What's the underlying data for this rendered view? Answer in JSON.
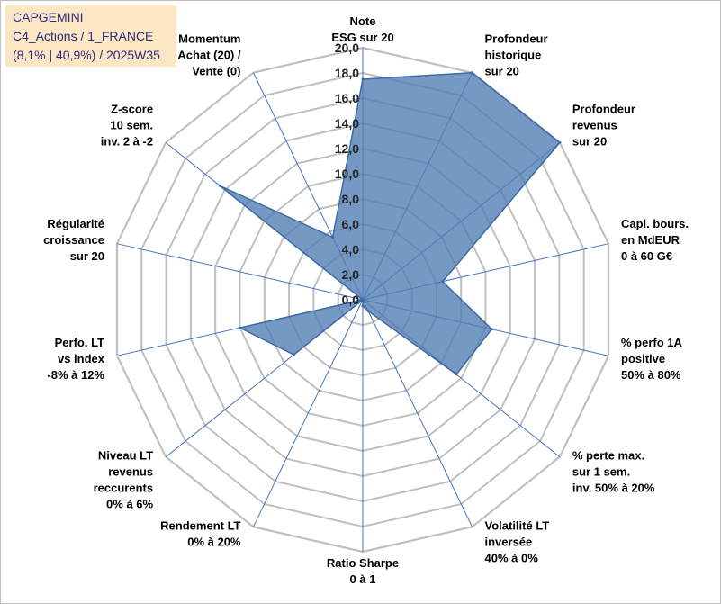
{
  "header": {
    "line1": "CAPGEMINI",
    "line2": "C4_Actions / 1_FRANCE",
    "line3": "(8,1% | 40,9%) / 2025W35"
  },
  "chart_data": {
    "type": "radar",
    "title": "",
    "categories": [
      [
        "Note",
        "ESG sur 20"
      ],
      [
        "Profondeur",
        "historique",
        "sur 20"
      ],
      [
        "Profondeur",
        "revenus",
        "sur 20"
      ],
      [
        "Capi. bours.",
        "en MdEUR",
        "0 à 60 G€"
      ],
      [
        "% perfo 1A",
        "positive",
        "50% à 80%"
      ],
      [
        "% perte max.",
        "sur 1 sem.",
        "inv. 50% à 20%"
      ],
      [
        "Volatilité LT",
        "inversée",
        "40% à 0%"
      ],
      [
        "Ratio Sharpe",
        "0 à 1"
      ],
      [
        "Rendement LT",
        "0% à 20%"
      ],
      [
        "Niveau LT",
        "revenus",
        "reccurents",
        "0% à 6%"
      ],
      [
        "Perfo. LT",
        "vs index",
        "-8% à 12%"
      ],
      [
        "Régularité",
        "croissance",
        "sur 20"
      ],
      [
        "Z-score",
        "10 sem.",
        "inv. 2 à -2"
      ],
      [
        "Momentum",
        "Achat (20) /",
        "Vente (0)"
      ]
    ],
    "series": [
      {
        "values": [
          17.5,
          20.0,
          20.0,
          6.5,
          10.5,
          9.5,
          1.0,
          0.5,
          0.0,
          7.0,
          10.0,
          0.0,
          14.5,
          5.5
        ]
      }
    ],
    "rlim": [
      0,
      20
    ],
    "ticks": [
      "0,0",
      "2,0",
      "4,0",
      "6,0",
      "8,0",
      "10,0",
      "12,0",
      "14,0",
      "16,0",
      "18,0",
      "20,0"
    ],
    "grid": true,
    "colors": {
      "fill": "#4f7cb2",
      "stroke": "#3d6aa3",
      "grid": "#bfbfbf",
      "spoke": "#4472c4",
      "title_bg": "#fce7c5",
      "title_text": "#2b2b80"
    }
  }
}
